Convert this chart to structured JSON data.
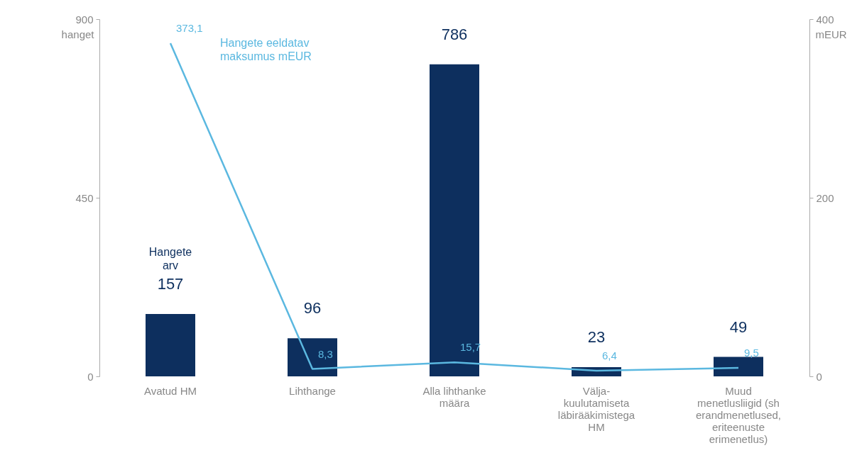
{
  "chart_data": {
    "type": "bar",
    "ylabel": "hanget",
    "y2label": "mEUR",
    "categories": [
      "Avatud HM",
      "Lihthange",
      "Alla lihthanke määra",
      "Välja-kuulutamiseta läbirääkimistega HM",
      "Muud menetlusliigid (sh erandmenetlused, eriteenuste erimenetlus)"
    ],
    "series": [
      {
        "name": "Hangete arv",
        "color": "#0d2f5e",
        "values": [
          157,
          96,
          786,
          23,
          49
        ],
        "value_labels": [
          "157",
          "96",
          "786",
          "23",
          "49"
        ]
      },
      {
        "name": "Hangete eeldatav maksumus mEUR",
        "type": "line",
        "axis": "y2",
        "color": "#5bb8e0",
        "values": [
          373.1,
          8.3,
          15.7,
          6.4,
          9.5
        ],
        "value_labels": [
          "373,1",
          "8,3",
          "15,7",
          "6,4",
          "9,5"
        ]
      }
    ],
    "ylim": [
      0,
      900
    ],
    "yticks": [
      0,
      450,
      900
    ],
    "y2lim": [
      0,
      400
    ],
    "y2ticks": [
      0,
      200,
      400
    ],
    "grid": false,
    "legend": false
  }
}
